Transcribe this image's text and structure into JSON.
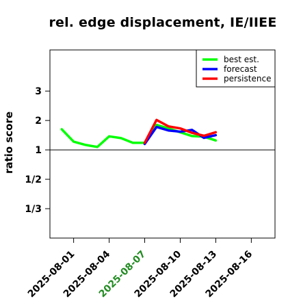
{
  "chart_data": {
    "type": "line",
    "title": "rel. edge displacement, IE/IIEE",
    "xlabel": "",
    "ylabel": "ratio score",
    "y_scale": "reciprocal-log",
    "ylim": [
      0.25,
      4.4
    ],
    "xlim": [
      "2025-07-30",
      "2025-08-18"
    ],
    "x_ticks": [
      "2025-08-01",
      "2025-08-04",
      "2025-08-07",
      "2025-08-10",
      "2025-08-13",
      "2025-08-16"
    ],
    "x_tick_colors": [
      "#000000",
      "#000000",
      "#228B22",
      "#000000",
      "#000000",
      "#000000"
    ],
    "y_ticks": [
      {
        "value": 3,
        "label": "3"
      },
      {
        "value": 2,
        "label": "2"
      },
      {
        "value": 1,
        "label": "1"
      },
      {
        "value": 0.5,
        "label": "1/2"
      },
      {
        "value": 0.3333,
        "label": "1/3"
      }
    ],
    "reference_line": 1,
    "legend_position": "top-right",
    "series": [
      {
        "name": "best est.",
        "color": "#00ff00",
        "x": [
          "2025-07-31",
          "2025-08-01",
          "2025-08-02",
          "2025-08-03",
          "2025-08-04",
          "2025-08-05",
          "2025-08-06",
          "2025-08-07",
          "2025-08-08",
          "2025-08-09",
          "2025-08-10",
          "2025-08-11",
          "2025-08-12",
          "2025-08-13"
        ],
        "values": [
          1.7,
          1.28,
          1.17,
          1.1,
          1.46,
          1.4,
          1.24,
          1.24,
          1.85,
          1.73,
          1.6,
          1.47,
          1.45,
          1.32
        ]
      },
      {
        "name": "forecast",
        "color": "#0000ff",
        "x": [
          "2025-08-07",
          "2025-08-08",
          "2025-08-09",
          "2025-08-10",
          "2025-08-11",
          "2025-08-12",
          "2025-08-13"
        ],
        "values": [
          1.2,
          1.78,
          1.66,
          1.62,
          1.68,
          1.41,
          1.5
        ]
      },
      {
        "name": "persistence",
        "color": "#ff0000",
        "x": [
          "2025-08-07",
          "2025-08-08",
          "2025-08-09",
          "2025-08-10",
          "2025-08-11",
          "2025-08-12",
          "2025-08-13"
        ],
        "values": [
          1.24,
          2.02,
          1.8,
          1.73,
          1.58,
          1.48,
          1.6
        ]
      }
    ]
  }
}
